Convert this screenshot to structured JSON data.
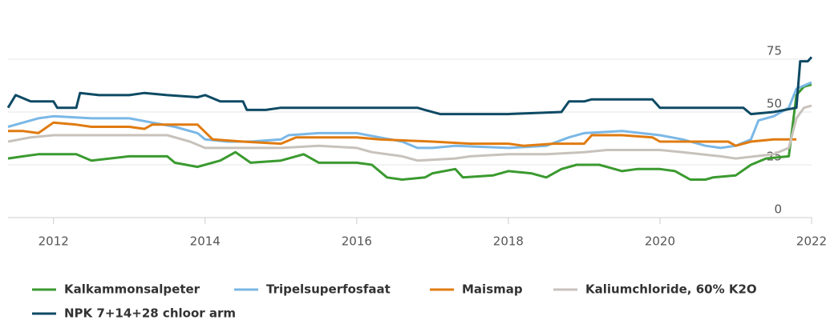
{
  "chart_data": {
    "type": "line",
    "xlim": [
      2011.4,
      2022
    ],
    "xticks": [
      2012,
      2014,
      2016,
      2018,
      2020,
      2022
    ],
    "ylim": [
      0,
      100
    ],
    "yticks": [
      0,
      25,
      50,
      75
    ],
    "grid": true,
    "legend": "bottom",
    "series": [
      {
        "name": "Kalkammonsalpeter",
        "color": "#3a9a2f",
        "x": [
          2011.4,
          2011.6,
          2011.8,
          2012,
          2012.3,
          2012.5,
          2013,
          2013.5,
          2013.6,
          2013.9,
          2014.2,
          2014.4,
          2014.6,
          2015,
          2015.3,
          2015.5,
          2016,
          2016.2,
          2016.4,
          2016.6,
          2016.9,
          2017,
          2017.3,
          2017.4,
          2017.8,
          2018,
          2018.3,
          2018.5,
          2018.7,
          2018.9,
          2019.2,
          2019.5,
          2019.7,
          2020,
          2020.2,
          2020.4,
          2020.6,
          2020.7,
          2021,
          2021.2,
          2021.4,
          2021.7,
          2021.8,
          2021.9,
          2022
        ],
        "values": [
          28,
          29,
          30,
          30,
          30,
          27,
          29,
          29,
          26,
          24,
          27,
          31,
          26,
          27,
          30,
          26,
          26,
          25,
          19,
          18,
          19,
          21,
          23,
          19,
          20,
          22,
          21,
          19,
          23,
          25,
          25,
          22,
          23,
          23,
          22,
          18,
          18,
          19,
          20,
          25,
          28,
          29,
          58,
          62,
          63
        ]
      },
      {
        "name": "Tripelsuperfosfaat",
        "color": "#7ab8e6",
        "x": [
          2011.4,
          2011.6,
          2011.8,
          2012,
          2012.5,
          2013,
          2013.3,
          2013.6,
          2013.9,
          2014,
          2014.3,
          2014.6,
          2015,
          2015.1,
          2015.5,
          2016,
          2016.3,
          2016.6,
          2016.8,
          2017,
          2017.3,
          2018,
          2018.5,
          2018.8,
          2019,
          2019.5,
          2020,
          2020.3,
          2020.6,
          2020.8,
          2021,
          2021.2,
          2021.3,
          2021.5,
          2021.7,
          2021.8,
          2022
        ],
        "values": [
          43,
          45,
          47,
          48,
          47,
          47,
          45,
          43,
          40,
          37,
          36,
          36,
          37,
          39,
          40,
          40,
          38,
          36,
          33,
          33,
          34,
          33,
          34,
          38,
          40,
          41,
          39,
          37,
          34,
          33,
          34,
          37,
          46,
          48,
          52,
          61,
          64
        ]
      },
      {
        "name": "Maismap",
        "color": "#e07b10",
        "x": [
          2011.4,
          2011.6,
          2011.8,
          2012,
          2012.3,
          2012.5,
          2013,
          2013.2,
          2013.3,
          2013.9,
          2014.1,
          2014.5,
          2015,
          2015.2,
          2015.5,
          2016,
          2016.3,
          2017,
          2017.5,
          2018,
          2018.2,
          2018.6,
          2019,
          2019.1,
          2019.5,
          2019.9,
          2020,
          2020.5,
          2020.9,
          2021,
          2021.2,
          2021.5,
          2021.8
        ],
        "values": [
          41,
          41,
          40,
          45,
          44,
          43,
          43,
          42,
          44,
          44,
          37,
          36,
          35,
          38,
          38,
          38,
          37,
          36,
          35,
          35,
          34,
          35,
          35,
          39,
          39,
          38,
          36,
          36,
          36,
          34,
          36,
          37,
          37
        ]
      },
      {
        "name": "Kaliumchloride, 60% K2O",
        "color": "#c8c2bc",
        "x": [
          2011.4,
          2011.7,
          2012,
          2012.5,
          2013,
          2013.5,
          2013.8,
          2014,
          2014.3,
          2015,
          2015.5,
          2016,
          2016.2,
          2016.6,
          2016.8,
          2017.3,
          2017.5,
          2018,
          2018.5,
          2019,
          2019.3,
          2020,
          2020.3,
          2020.8,
          2021,
          2021.5,
          2021.7,
          2021.8,
          2021.9,
          2022
        ],
        "values": [
          36,
          38,
          39,
          39,
          39,
          39,
          36,
          33,
          33,
          33,
          34,
          33,
          31,
          29,
          27,
          28,
          29,
          30,
          30,
          31,
          32,
          32,
          31,
          29,
          28,
          30,
          33,
          47,
          52,
          53
        ]
      },
      {
        "name": "NPK 7+14+28 chloor arm",
        "color": "#0e4a64",
        "x": [
          2011.4,
          2011.5,
          2011.7,
          2012,
          2012.05,
          2012.3,
          2012.35,
          2012.6,
          2013,
          2013.2,
          2013.5,
          2013.9,
          2014,
          2014.2,
          2014.5,
          2014.55,
          2014.8,
          2015,
          2016,
          2016.8,
          2016.9,
          2017.1,
          2018,
          2018.7,
          2018.8,
          2019,
          2019.1,
          2019.9,
          2020,
          2021.1,
          2021.2,
          2021.5,
          2021.8,
          2021.85,
          2021.95,
          2022
        ],
        "values": [
          52,
          58,
          55,
          55,
          52,
          52,
          59,
          58,
          58,
          59,
          58,
          57,
          58,
          55,
          55,
          51,
          51,
          52,
          52,
          52,
          51,
          49,
          49,
          50,
          55,
          55,
          56,
          56,
          52,
          52,
          49,
          50,
          52,
          74,
          74,
          76
        ]
      }
    ]
  }
}
